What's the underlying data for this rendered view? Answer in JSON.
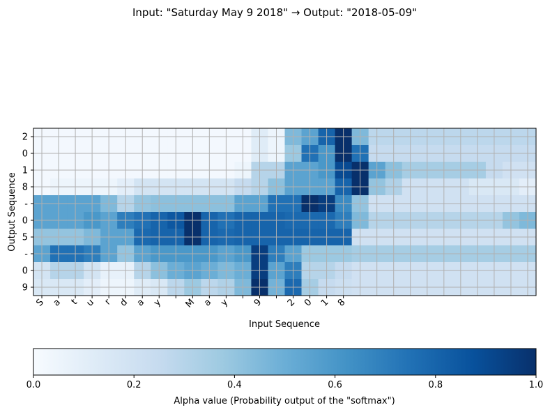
{
  "chart_data": {
    "type": "heatmap",
    "title": "Input: \"Saturday May 9 2018\"  →  Output: \"2018-05-09\"",
    "xlabel": "Input Sequence",
    "ylabel": "Output Sequence",
    "x_ticks": [
      "S",
      "a",
      "t",
      "u",
      "r",
      "d",
      "a",
      "y",
      " ",
      "M",
      "a",
      "y",
      " ",
      "9",
      " ",
      "2",
      "0",
      "1",
      "8"
    ],
    "y_ticks": [
      "2",
      "0",
      "1",
      "8",
      "-",
      "0",
      "5",
      "-",
      "0",
      "9"
    ],
    "n_columns": 30,
    "colorscale": "Blues",
    "value_range": [
      0,
      1
    ],
    "grid": true,
    "colorbar": {
      "label": "Alpha value (Probability output of the \"softmax\")",
      "ticks": [
        "0.0",
        "0.2",
        "0.4",
        "0.6",
        "0.8",
        "1.0"
      ],
      "placement": "bottom"
    },
    "values": [
      [
        0.02,
        0.02,
        0.02,
        0.02,
        0.02,
        0.02,
        0.02,
        0.02,
        0.02,
        0.02,
        0.02,
        0.02,
        0.02,
        0.12,
        0.05,
        0.45,
        0.55,
        0.8,
        1.0,
        0.45,
        0.28,
        0.28,
        0.28,
        0.28,
        0.28,
        0.28,
        0.28,
        0.28,
        0.28,
        0.28
      ],
      [
        0.02,
        0.02,
        0.02,
        0.02,
        0.02,
        0.02,
        0.02,
        0.02,
        0.02,
        0.02,
        0.02,
        0.02,
        0.02,
        0.12,
        0.05,
        0.38,
        0.75,
        0.6,
        1.0,
        0.75,
        0.25,
        0.25,
        0.25,
        0.25,
        0.25,
        0.25,
        0.25,
        0.25,
        0.25,
        0.25
      ],
      [
        0.02,
        0.02,
        0.02,
        0.02,
        0.02,
        0.02,
        0.02,
        0.02,
        0.02,
        0.02,
        0.02,
        0.02,
        0.05,
        0.3,
        0.3,
        0.55,
        0.55,
        0.6,
        0.9,
        1.0,
        0.55,
        0.42,
        0.35,
        0.35,
        0.35,
        0.35,
        0.35,
        0.25,
        0.2,
        0.2
      ],
      [
        0.02,
        0.05,
        0.05,
        0.05,
        0.05,
        0.1,
        0.18,
        0.18,
        0.18,
        0.18,
        0.18,
        0.18,
        0.25,
        0.3,
        0.42,
        0.55,
        0.55,
        0.55,
        0.8,
        1.0,
        0.4,
        0.32,
        0.2,
        0.2,
        0.2,
        0.2,
        0.15,
        0.15,
        0.15,
        0.1
      ],
      [
        0.55,
        0.55,
        0.55,
        0.55,
        0.45,
        0.3,
        0.4,
        0.42,
        0.42,
        0.42,
        0.42,
        0.42,
        0.55,
        0.55,
        0.75,
        0.75,
        1.0,
        0.95,
        0.65,
        0.4,
        0.2,
        0.2,
        0.2,
        0.2,
        0.2,
        0.2,
        0.2,
        0.2,
        0.2,
        0.2
      ],
      [
        0.55,
        0.55,
        0.55,
        0.6,
        0.55,
        0.7,
        0.75,
        0.8,
        0.85,
        1.0,
        0.8,
        0.75,
        0.8,
        0.8,
        0.8,
        0.78,
        0.78,
        0.78,
        0.7,
        0.45,
        0.3,
        0.3,
        0.3,
        0.3,
        0.3,
        0.3,
        0.3,
        0.3,
        0.4,
        0.45
      ],
      [
        0.4,
        0.4,
        0.4,
        0.45,
        0.55,
        0.55,
        0.78,
        0.8,
        0.8,
        1.0,
        0.8,
        0.78,
        0.8,
        0.8,
        0.8,
        0.8,
        0.8,
        0.8,
        0.8,
        0.2,
        0.2,
        0.2,
        0.2,
        0.2,
        0.2,
        0.2,
        0.2,
        0.2,
        0.2,
        0.2
      ],
      [
        0.55,
        0.75,
        0.75,
        0.7,
        0.55,
        0.4,
        0.55,
        0.6,
        0.6,
        0.6,
        0.6,
        0.55,
        0.6,
        0.95,
        0.7,
        0.55,
        0.38,
        0.38,
        0.38,
        0.35,
        0.35,
        0.35,
        0.35,
        0.35,
        0.35,
        0.35,
        0.35,
        0.35,
        0.35,
        0.35
      ],
      [
        0.18,
        0.3,
        0.3,
        0.18,
        0.08,
        0.08,
        0.3,
        0.42,
        0.5,
        0.55,
        0.5,
        0.45,
        0.5,
        0.95,
        0.55,
        0.7,
        0.3,
        0.3,
        0.25,
        0.2,
        0.2,
        0.2,
        0.2,
        0.2,
        0.2,
        0.2,
        0.2,
        0.2,
        0.2,
        0.2
      ],
      [
        0.15,
        0.15,
        0.15,
        0.1,
        0.05,
        0.05,
        0.12,
        0.15,
        0.28,
        0.38,
        0.28,
        0.32,
        0.45,
        1.0,
        0.48,
        0.78,
        0.35,
        0.25,
        0.22,
        0.2,
        0.2,
        0.2,
        0.2,
        0.2,
        0.2,
        0.2,
        0.2,
        0.2,
        0.2,
        0.2
      ]
    ]
  }
}
